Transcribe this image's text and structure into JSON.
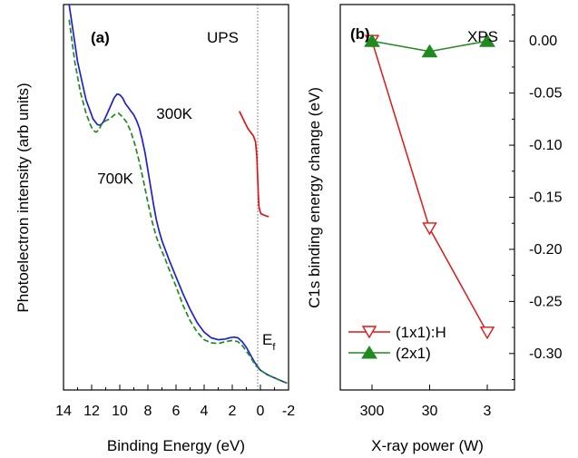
{
  "chart_data": [
    {
      "type": "line",
      "panel_label": "(a)",
      "annotation": "UPS",
      "xlabel": "Binding Energy (eV)",
      "ylabel": "Photoelectron intensity (arb units)",
      "xlim": [
        14,
        -2
      ],
      "ylim": [
        0,
        1
      ],
      "x_ticks": [
        "14",
        "12",
        "10",
        "8",
        "6",
        "4",
        "2",
        "0",
        "-2"
      ],
      "ef_label": "E",
      "ef_sub": "f",
      "ef_position": 0,
      "series": [
        {
          "name": "300K",
          "color": "#1f1fd6",
          "style": "solid",
          "x": [
            13.6,
            13.0,
            12.4,
            11.9,
            11.6,
            11.4,
            11.2,
            11.0,
            10.7,
            10.4,
            10.2,
            10.0,
            9.8,
            9.6,
            9.4,
            9.2,
            9.0,
            8.8,
            8.6,
            8.4,
            8.2,
            8.0,
            7.8,
            7.6,
            7.4,
            7.2,
            7.0,
            6.8,
            6.5,
            6.0,
            5.5,
            5.0,
            4.5,
            4.0,
            3.5,
            3.0,
            2.5,
            2.2,
            1.9,
            1.6,
            1.3,
            1.0,
            0.7,
            0.4,
            0.0,
            -0.5,
            -1.0,
            -1.5,
            -1.9
          ],
          "y": [
            1.0,
            0.85,
            0.75,
            0.7,
            0.685,
            0.683,
            0.69,
            0.705,
            0.73,
            0.755,
            0.765,
            0.763,
            0.755,
            0.74,
            0.73,
            0.72,
            0.71,
            0.695,
            0.675,
            0.645,
            0.61,
            0.565,
            0.52,
            0.475,
            0.435,
            0.405,
            0.38,
            0.36,
            0.33,
            0.285,
            0.24,
            0.2,
            0.165,
            0.14,
            0.125,
            0.12,
            0.122,
            0.125,
            0.127,
            0.125,
            0.115,
            0.1,
            0.08,
            0.06,
            0.04,
            0.028,
            0.02,
            0.012,
            0.006
          ]
        },
        {
          "name": "700K",
          "color": "#1f8a1f",
          "style": "dashed",
          "x": [
            13.6,
            13.2,
            12.8,
            12.4,
            12.1,
            11.9,
            11.7,
            11.5,
            11.3,
            11.0,
            10.7,
            10.4,
            10.1,
            9.8,
            9.5,
            9.2,
            8.9,
            8.6,
            8.3,
            8.0,
            7.7,
            7.4,
            7.1,
            6.8,
            6.5,
            6.0,
            5.5,
            5.0,
            4.5,
            4.0,
            3.5,
            3.0,
            2.5,
            2.0,
            1.6,
            1.3,
            1.0,
            0.7,
            0.4,
            0.0,
            -0.5,
            -1.0,
            -1.5,
            -1.9
          ],
          "y": [
            0.96,
            0.85,
            0.77,
            0.715,
            0.685,
            0.67,
            0.665,
            0.67,
            0.685,
            0.695,
            0.7,
            0.71,
            0.715,
            0.705,
            0.69,
            0.665,
            0.63,
            0.585,
            0.535,
            0.48,
            0.43,
            0.39,
            0.36,
            0.335,
            0.305,
            0.26,
            0.21,
            0.17,
            0.14,
            0.12,
            0.112,
            0.11,
            0.115,
            0.118,
            0.115,
            0.105,
            0.09,
            0.075,
            0.055,
            0.04,
            0.028,
            0.02,
            0.012,
            0.006
          ]
        },
        {
          "name": "",
          "color": "#e01515",
          "style": "solid",
          "x": [
            1.5,
            1.3,
            1.1,
            0.9,
            0.7,
            0.5,
            0.35,
            0.25,
            0.2,
            0.15,
            0.1,
            0.05,
            0.0,
            -0.05,
            -0.1,
            -0.2,
            -0.4,
            -0.6
          ],
          "y": [
            0.72,
            0.705,
            0.69,
            0.675,
            0.665,
            0.655,
            0.64,
            0.6,
            0.55,
            0.5,
            0.47,
            0.46,
            0.455,
            0.45,
            0.45,
            0.448,
            0.445,
            0.443
          ]
        }
      ],
      "annotations": [
        {
          "text": "300K",
          "x": 7.4,
          "y": 0.7,
          "color": "#1f1fd6"
        },
        {
          "text": "700K",
          "x": 11.6,
          "y": 0.53,
          "color": "#1f8a1f"
        }
      ]
    },
    {
      "type": "line",
      "panel_label": "(b)",
      "annotation": "XPS",
      "xlabel": "X-ray power (W)",
      "ylabel": "C1s binding energy change (eV)",
      "categories": [
        "300",
        "30",
        "3"
      ],
      "ylim": [
        -0.335,
        0.035
      ],
      "y_ticks": [
        0.0,
        -0.05,
        -0.1,
        -0.15,
        -0.2,
        -0.25,
        -0.3
      ],
      "y_tick_labels": [
        "0.00",
        "-0.05",
        "-0.10",
        "-0.15",
        "-0.20",
        "-0.25",
        "-0.30"
      ],
      "legend_position": "bottom-left",
      "series": [
        {
          "name": "(1x1):H",
          "color": "#e01515",
          "marker": "triangle-down-open",
          "values": [
            0.0,
            -0.18,
            -0.28
          ]
        },
        {
          "name": "(2x1)",
          "color": "#1f8a1f",
          "marker": "triangle-up-filled",
          "values": [
            0.0,
            -0.01,
            0.0
          ]
        }
      ]
    }
  ]
}
